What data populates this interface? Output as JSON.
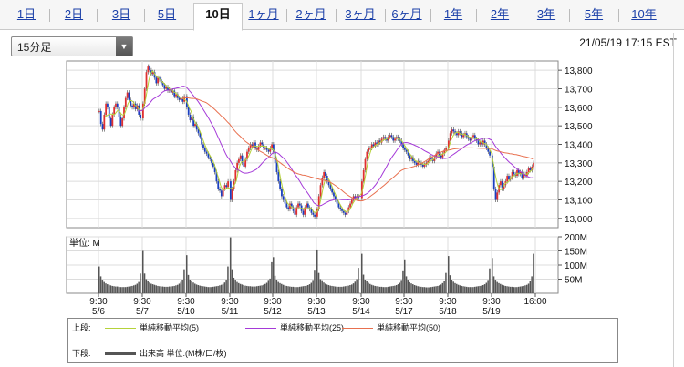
{
  "tabs": [
    {
      "label": "1日",
      "active": false
    },
    {
      "label": "2日",
      "active": false
    },
    {
      "label": "3日",
      "active": false
    },
    {
      "label": "5日",
      "active": false
    },
    {
      "label": "10日",
      "active": true
    },
    {
      "label": "1ヶ月",
      "active": false
    },
    {
      "label": "2ヶ月",
      "active": false
    },
    {
      "label": "3ヶ月",
      "active": false
    },
    {
      "label": "6ヶ月",
      "active": false
    },
    {
      "label": "1年",
      "active": false
    },
    {
      "label": "2年",
      "active": false
    },
    {
      "label": "3年",
      "active": false
    },
    {
      "label": "5年",
      "active": false
    },
    {
      "label": "10年",
      "active": false
    }
  ],
  "interval_select": {
    "value": "15分足",
    "arrow_icon": "chevron-down-icon"
  },
  "timestamp": "21/05/19 17:15 EST",
  "legend": {
    "upper_label": "上段:",
    "lower_label": "下段:",
    "items": [
      {
        "name": "単純移動平均(5)",
        "color": "#b5d23a"
      },
      {
        "name": "単純移動平均(25)",
        "color": "#a53ad8"
      },
      {
        "name": "単純移動平均(50)",
        "color": "#e8704f"
      }
    ],
    "volume_item": {
      "name": "出来高 単位:(M株/口/枚)",
      "color": "#555555"
    }
  },
  "chart_data": [
    {
      "type": "line",
      "title": "",
      "price_axis": {
        "ylim": [
          12950,
          13850
        ],
        "ticks": [
          "13,800",
          "13,700",
          "13,600",
          "13,500",
          "13,400",
          "13,300",
          "13,200",
          "13,100",
          "13,000"
        ]
      },
      "grid": true,
      "days": [
        {
          "time": "9:30",
          "date": "5/6"
        },
        {
          "time": "9:30",
          "date": "5/7"
        },
        {
          "time": "9:30",
          "date": "5/10"
        },
        {
          "time": "9:30",
          "date": "5/11"
        },
        {
          "time": "9:30",
          "date": "5/12"
        },
        {
          "time": "9:30",
          "date": "5/13"
        },
        {
          "time": "9:30",
          "date": "5/14"
        },
        {
          "time": "9:30",
          "date": "5/17"
        },
        {
          "time": "9:30",
          "date": "5/18"
        },
        {
          "time": "9:30",
          "date": "5/19"
        }
      ],
      "end_time": "16:00",
      "close": [
        [
          13580,
          13510,
          13480,
          13560,
          13620,
          13600,
          13540,
          13500,
          13560,
          13600,
          13620,
          13600,
          13550,
          13500,
          13540,
          13600,
          13650,
          13680,
          13640,
          13610,
          13600,
          13620,
          13590,
          13610,
          13560,
          13540
        ],
        [
          13620,
          13700,
          13790,
          13820,
          13800,
          13780,
          13790,
          13760,
          13730,
          13760,
          13750,
          13730,
          13720,
          13700,
          13710,
          13690,
          13700,
          13680,
          13690,
          13660,
          13670,
          13650,
          13640,
          13650,
          13630,
          13660
        ],
        [
          13600,
          13560,
          13530,
          13550,
          13500,
          13510,
          13480,
          13460,
          13440,
          13400,
          13380,
          13360,
          13350,
          13330,
          13320,
          13300,
          13280,
          13250,
          13200,
          13160,
          13150,
          13120,
          13160,
          13180,
          13170,
          13200
        ],
        [
          13100,
          13160,
          13200,
          13260,
          13300,
          13320,
          13340,
          13300,
          13280,
          13320,
          13360,
          13380,
          13400,
          13390,
          13410,
          13380,
          13370,
          13390,
          13410,
          13400,
          13380,
          13380,
          13370,
          13360,
          13380,
          13400
        ],
        [
          13360,
          13300,
          13250,
          13200,
          13160,
          13120,
          13100,
          13080,
          13060,
          13050,
          13080,
          13060,
          13040,
          13020,
          13060,
          13080,
          13070,
          13040,
          13020,
          13060,
          13080,
          13060,
          13050,
          13030,
          13020,
          13010
        ],
        [
          13050,
          13120,
          13180,
          13220,
          13250,
          13230,
          13200,
          13180,
          13160,
          13140,
          13120,
          13100,
          13080,
          13060,
          13050,
          13040,
          13030,
          13020,
          13040,
          13060,
          13080,
          13100,
          13120,
          13110,
          13120,
          13110
        ],
        [
          13200,
          13260,
          13320,
          13360,
          13380,
          13380,
          13400,
          13390,
          13410,
          13400,
          13420,
          13410,
          13430,
          13440,
          13430,
          13420,
          13440,
          13450,
          13440,
          13420,
          13430,
          13440,
          13430,
          13420,
          13400,
          13380
        ],
        [
          13370,
          13360,
          13340,
          13320,
          13330,
          13310,
          13300,
          13290,
          13310,
          13300,
          13290,
          13280,
          13290,
          13300,
          13310,
          13330,
          13320,
          13310,
          13330,
          13350,
          13360,
          13340,
          13330,
          13350,
          13370,
          13380
        ],
        [
          13420,
          13460,
          13480,
          13470,
          13460,
          13450,
          13470,
          13460,
          13440,
          13450,
          13460,
          13440,
          13430,
          13420,
          13440,
          13450,
          13430,
          13420,
          13400,
          13410,
          13400,
          13420,
          13400,
          13380,
          13360,
          13340
        ],
        [
          13280,
          13160,
          13100,
          13140,
          13180,
          13200,
          13160,
          13180,
          13200,
          13230,
          13210,
          13220,
          13250,
          13240,
          13230,
          13260,
          13240,
          13250,
          13220,
          13240,
          13230,
          13250,
          13270,
          13260,
          13280,
          13300
        ]
      ],
      "volume_axis": {
        "ylim": [
          0,
          200
        ],
        "ticks": [
          "200M",
          "150M",
          "100M",
          "50M"
        ],
        "unit_label": "単位: M"
      },
      "volume": [
        [
          95,
          60,
          45,
          40,
          35,
          32,
          30,
          28,
          26,
          25,
          24,
          24,
          23,
          22,
          22,
          22,
          22,
          23,
          24,
          25,
          26,
          28,
          30,
          34,
          40,
          70
        ],
        [
          150,
          70,
          50,
          42,
          38,
          34,
          32,
          30,
          28,
          26,
          25,
          24,
          24,
          23,
          23,
          23,
          24,
          24,
          25,
          26,
          28,
          30,
          34,
          40,
          48,
          85
        ],
        [
          135,
          65,
          48,
          42,
          38,
          34,
          31,
          29,
          27,
          26,
          25,
          24,
          23,
          22,
          22,
          22,
          23,
          24,
          25,
          26,
          28,
          30,
          33,
          38,
          45,
          95
        ],
        [
          198,
          85,
          55,
          45,
          40,
          36,
          33,
          31,
          29,
          27,
          26,
          25,
          25,
          24,
          24,
          24,
          25,
          26,
          27,
          28,
          30,
          33,
          37,
          44,
          52,
          110
        ],
        [
          128,
          62,
          46,
          40,
          36,
          33,
          30,
          28,
          26,
          25,
          24,
          23,
          23,
          22,
          22,
          22,
          23,
          24,
          25,
          26,
          27,
          29,
          32,
          37,
          44,
          80
        ],
        [
          155,
          72,
          50,
          43,
          38,
          34,
          31,
          29,
          27,
          26,
          25,
          24,
          23,
          23,
          23,
          23,
          24,
          25,
          26,
          27,
          29,
          31,
          35,
          41,
          50,
          90
        ],
        [
          140,
          66,
          48,
          42,
          37,
          33,
          30,
          28,
          26,
          25,
          24,
          23,
          23,
          22,
          22,
          22,
          23,
          24,
          25,
          26,
          27,
          29,
          32,
          37,
          44,
          78
        ],
        [
          120,
          60,
          45,
          39,
          35,
          32,
          29,
          27,
          25,
          24,
          23,
          22,
          22,
          21,
          21,
          21,
          22,
          23,
          24,
          25,
          26,
          28,
          31,
          36,
          42,
          72
        ],
        [
          132,
          64,
          47,
          41,
          36,
          33,
          30,
          28,
          26,
          25,
          24,
          23,
          22,
          22,
          22,
          22,
          23,
          24,
          25,
          26,
          27,
          29,
          32,
          37,
          44,
          88
        ],
        [
          125,
          60,
          45,
          40,
          36,
          33,
          30,
          28,
          26,
          25,
          24,
          23,
          23,
          22,
          22,
          22,
          23,
          24,
          25,
          26,
          28,
          30,
          34,
          42,
          60,
          140
        ]
      ]
    }
  ]
}
